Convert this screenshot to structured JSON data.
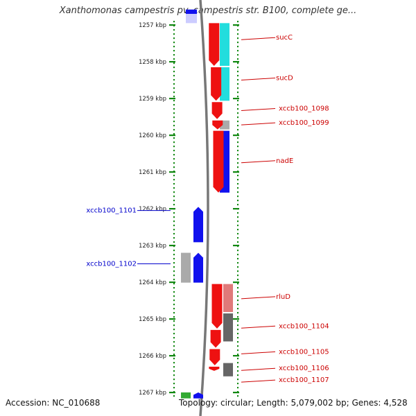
{
  "title": "Xanthomonas campestris pv. campestris str. B100, complete ge...",
  "accession": "Accession: NC_010688",
  "topology": "Topology: circular; Length: 5,079,002 bp; Genes: 4,528",
  "ruler": {
    "unit": "kbp",
    "ticks": [
      "1257 kbp",
      "1258 kbp",
      "1259 kbp",
      "1260 kbp",
      "1261 kbp",
      "1262 kbp",
      "1263 kbp",
      "1264 kbp",
      "1265 kbp",
      "1266 kbp",
      "1267 kbp"
    ],
    "range_kbp": [
      1256.58,
      1267.2
    ]
  },
  "colors": {
    "forward_cds": "#ee1111",
    "reverse_cds": "#1111ee",
    "label_forward": "#cc0000",
    "label_reverse": "#0000cc",
    "cyan": "#22dddd",
    "gray": "#aaaaaa",
    "darkgray": "#666666",
    "pink": "#e07a7a",
    "green": "#33aa33",
    "lavender": "#ccccff",
    "ruler_dots": "#118811",
    "backbone": "#777777"
  },
  "forward_genes": [
    {
      "start": 1256.95,
      "end": 1258.15,
      "arrow": "right"
    },
    {
      "start": 1258.15,
      "end": 1259.1,
      "arrow": "right"
    },
    {
      "start": 1259.1,
      "end": 1259.6,
      "arrow": "right"
    },
    {
      "start": 1259.6,
      "end": 1259.88,
      "arrow": "right"
    },
    {
      "start": 1259.88,
      "end": 1261.6,
      "arrow": "right"
    },
    {
      "start": 1264.05,
      "end": 1265.3,
      "arrow": "right"
    },
    {
      "start": 1265.3,
      "end": 1265.82,
      "arrow": "right"
    },
    {
      "start": 1265.82,
      "end": 1266.3,
      "arrow": "right"
    },
    {
      "start": 1266.3,
      "end": 1266.45,
      "arrow": "right"
    }
  ],
  "feature_blocks": [
    {
      "start": 1256.95,
      "end": 1258.15,
      "color": "cyan"
    },
    {
      "start": 1258.15,
      "end": 1259.1,
      "color": "cyan"
    },
    {
      "start": 1259.6,
      "end": 1259.88,
      "color": "gray"
    },
    {
      "start": 1259.88,
      "end": 1261.6,
      "color": "reverse_cds"
    },
    {
      "start": 1264.05,
      "end": 1264.85,
      "color": "pink"
    },
    {
      "start": 1264.85,
      "end": 1265.65,
      "color": "darkgray"
    },
    {
      "start": 1266.2,
      "end": 1266.6,
      "color": "darkgray"
    }
  ],
  "reverse_genes": [
    {
      "start": 1261.95,
      "end": 1262.95,
      "color": "reverse_cds",
      "lane": "inner"
    },
    {
      "start": 1263.2,
      "end": 1264.05,
      "color": "reverse_cds",
      "lane": "inner"
    },
    {
      "start": 1263.2,
      "end": 1264.05,
      "color": "gray",
      "lane": "outer"
    },
    {
      "start": 1267.0,
      "end": 1267.2,
      "color": "reverse_cds",
      "lane": "inner"
    },
    {
      "start": 1267.0,
      "end": 1267.2,
      "color": "green",
      "lane": "outer"
    }
  ],
  "top_blocks": [
    {
      "start": 1256.58,
      "end": 1256.7,
      "color": "reverse_cds"
    },
    {
      "start": 1256.7,
      "end": 1256.95,
      "color": "lavender"
    }
  ],
  "right_labels": [
    {
      "text": "sucC",
      "kbp": 1257.4
    },
    {
      "text": "sucD",
      "kbp": 1258.5
    },
    {
      "text": "xccb100_1098",
      "kbp": 1259.33
    },
    {
      "text": "xccb100_1099",
      "kbp": 1259.72
    },
    {
      "text": "nadE",
      "kbp": 1260.75
    },
    {
      "text": "rluD",
      "kbp": 1264.45
    },
    {
      "text": "xccb100_1104",
      "kbp": 1265.25
    },
    {
      "text": "xccb100_1105",
      "kbp": 1265.95
    },
    {
      "text": "xccb100_1106",
      "kbp": 1266.4
    },
    {
      "text": "xccb100_1107",
      "kbp": 1266.72
    }
  ],
  "left_labels": [
    {
      "text": "xccb100_1101",
      "kbp": 1262.05
    },
    {
      "text": "xccb100_1102",
      "kbp": 1263.5
    }
  ]
}
